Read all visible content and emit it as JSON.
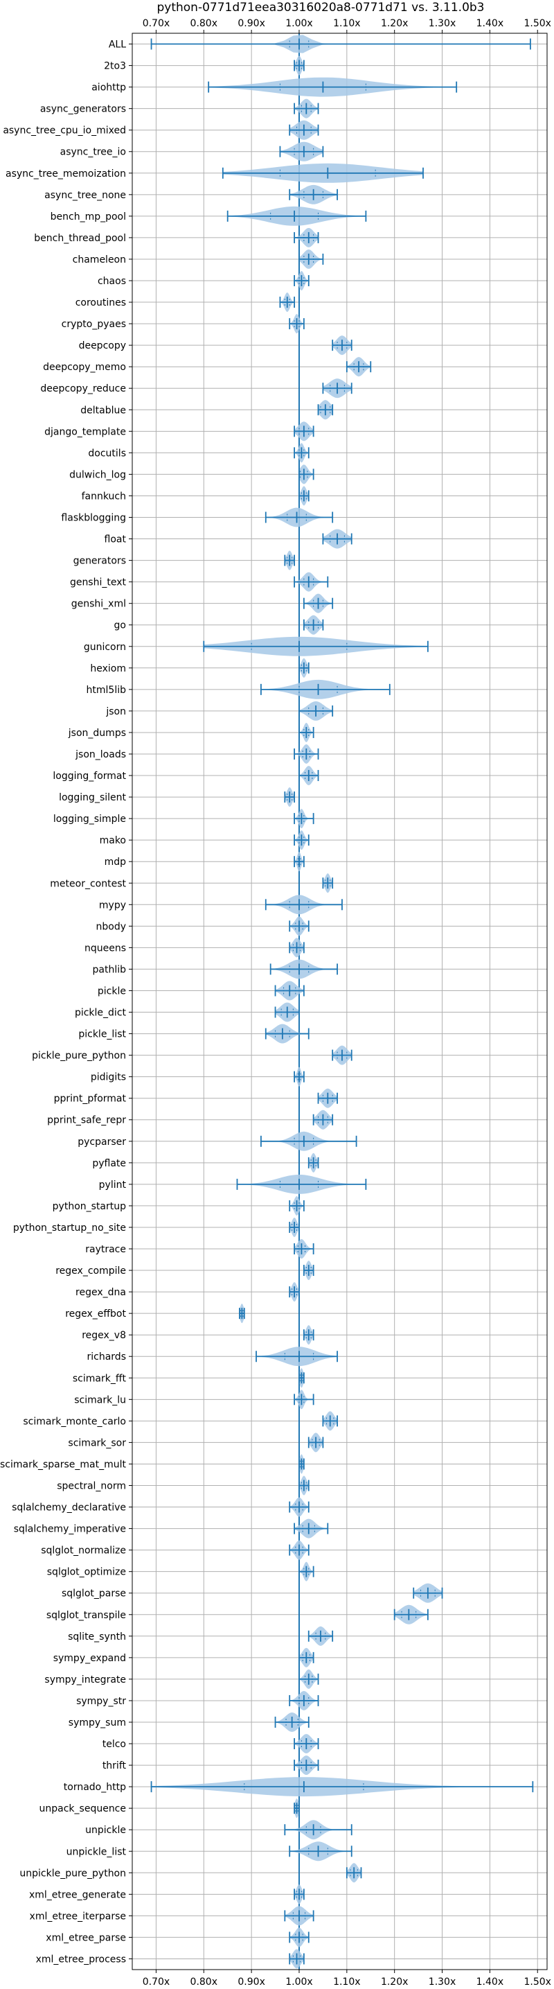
{
  "chart_data": {
    "type": "violin",
    "title": "python-0771d71eea30316020a8-0771d71 vs. 3.11.0b3",
    "xlim": [
      0.65,
      1.52
    ],
    "x_ticks": [
      "0.70x",
      "0.80x",
      "0.90x",
      "1.00x",
      "1.10x",
      "1.20x",
      "1.30x",
      "1.40x",
      "1.50x"
    ],
    "x_tick_values": [
      0.7,
      0.8,
      0.9,
      1.0,
      1.1,
      1.2,
      1.3,
      1.4,
      1.5
    ],
    "reference_line": 1.0,
    "grid": true,
    "color": "#1f77b4",
    "fill_color": "#a6c8e6",
    "benchmarks": [
      {
        "name": "ALL",
        "min": 0.69,
        "max": 1.485,
        "median": 1.0,
        "spread": 0.04
      },
      {
        "name": "2to3",
        "min": 0.99,
        "max": 1.01,
        "median": 1.0,
        "spread": 0.01
      },
      {
        "name": "aiohttp",
        "min": 0.81,
        "max": 1.33,
        "median": 1.05,
        "spread": 0.18
      },
      {
        "name": "async_generators",
        "min": 0.99,
        "max": 1.04,
        "median": 1.015,
        "spread": 0.02
      },
      {
        "name": "async_tree_cpu_io_mixed",
        "min": 0.98,
        "max": 1.04,
        "median": 1.01,
        "spread": 0.03
      },
      {
        "name": "async_tree_io",
        "min": 0.96,
        "max": 1.05,
        "median": 1.01,
        "spread": 0.04
      },
      {
        "name": "async_tree_memoization",
        "min": 0.84,
        "max": 1.26,
        "median": 1.06,
        "spread": 0.2
      },
      {
        "name": "async_tree_none",
        "min": 0.98,
        "max": 1.08,
        "median": 1.03,
        "spread": 0.04
      },
      {
        "name": "bench_mp_pool",
        "min": 0.85,
        "max": 1.14,
        "median": 0.99,
        "spread": 0.1
      },
      {
        "name": "bench_thread_pool",
        "min": 0.99,
        "max": 1.04,
        "median": 1.02,
        "spread": 0.02
      },
      {
        "name": "chameleon",
        "min": 1.0,
        "max": 1.05,
        "median": 1.02,
        "spread": 0.02
      },
      {
        "name": "chaos",
        "min": 0.99,
        "max": 1.02,
        "median": 1.005,
        "spread": 0.01
      },
      {
        "name": "coroutines",
        "min": 0.96,
        "max": 0.99,
        "median": 0.975,
        "spread": 0.01
      },
      {
        "name": "crypto_pyaes",
        "min": 0.98,
        "max": 1.01,
        "median": 0.995,
        "spread": 0.01
      },
      {
        "name": "deepcopy",
        "min": 1.07,
        "max": 1.11,
        "median": 1.09,
        "spread": 0.02
      },
      {
        "name": "deepcopy_memo",
        "min": 1.1,
        "max": 1.15,
        "median": 1.125,
        "spread": 0.02
      },
      {
        "name": "deepcopy_reduce",
        "min": 1.05,
        "max": 1.11,
        "median": 1.08,
        "spread": 0.03
      },
      {
        "name": "deltablue",
        "min": 1.04,
        "max": 1.07,
        "median": 1.055,
        "spread": 0.02
      },
      {
        "name": "django_template",
        "min": 0.99,
        "max": 1.03,
        "median": 1.01,
        "spread": 0.02
      },
      {
        "name": "docutils",
        "min": 0.99,
        "max": 1.02,
        "median": 1.005,
        "spread": 0.01
      },
      {
        "name": "dulwich_log",
        "min": 1.0,
        "max": 1.03,
        "median": 1.01,
        "spread": 0.015
      },
      {
        "name": "fannkuch",
        "min": 1.0,
        "max": 1.02,
        "median": 1.01,
        "spread": 0.01
      },
      {
        "name": "flaskblogging",
        "min": 0.93,
        "max": 1.07,
        "median": 0.995,
        "spread": 0.04
      },
      {
        "name": "float",
        "min": 1.05,
        "max": 1.11,
        "median": 1.08,
        "spread": 0.03
      },
      {
        "name": "generators",
        "min": 0.97,
        "max": 0.99,
        "median": 0.98,
        "spread": 0.01
      },
      {
        "name": "genshi_text",
        "min": 0.99,
        "max": 1.06,
        "median": 1.02,
        "spread": 0.02
      },
      {
        "name": "genshi_xml",
        "min": 1.01,
        "max": 1.07,
        "median": 1.04,
        "spread": 0.02
      },
      {
        "name": "go",
        "min": 1.01,
        "max": 1.05,
        "median": 1.03,
        "spread": 0.02
      },
      {
        "name": "gunicorn",
        "min": 0.8,
        "max": 1.27,
        "median": 1.0,
        "spread": 0.2
      },
      {
        "name": "hexiom",
        "min": 1.0,
        "max": 1.02,
        "median": 1.01,
        "spread": 0.01
      },
      {
        "name": "html5lib",
        "min": 0.92,
        "max": 1.19,
        "median": 1.04,
        "spread": 0.08
      },
      {
        "name": "json",
        "min": 1.0,
        "max": 1.07,
        "median": 1.035,
        "spread": 0.03
      },
      {
        "name": "json_dumps",
        "min": 1.0,
        "max": 1.03,
        "median": 1.015,
        "spread": 0.01
      },
      {
        "name": "json_loads",
        "min": 0.99,
        "max": 1.04,
        "median": 1.015,
        "spread": 0.015
      },
      {
        "name": "logging_format",
        "min": 1.0,
        "max": 1.04,
        "median": 1.02,
        "spread": 0.015
      },
      {
        "name": "logging_silent",
        "min": 0.97,
        "max": 0.99,
        "median": 0.98,
        "spread": 0.01
      },
      {
        "name": "logging_simple",
        "min": 0.99,
        "max": 1.03,
        "median": 1.005,
        "spread": 0.01
      },
      {
        "name": "mako",
        "min": 0.99,
        "max": 1.02,
        "median": 1.005,
        "spread": 0.01
      },
      {
        "name": "mdp",
        "min": 0.99,
        "max": 1.01,
        "median": 1.0,
        "spread": 0.005
      },
      {
        "name": "meteor_contest",
        "min": 1.05,
        "max": 1.07,
        "median": 1.06,
        "spread": 0.01
      },
      {
        "name": "mypy",
        "min": 0.93,
        "max": 1.09,
        "median": 1.0,
        "spread": 0.04
      },
      {
        "name": "nbody",
        "min": 0.98,
        "max": 1.02,
        "median": 1.0,
        "spread": 0.015
      },
      {
        "name": "nqueens",
        "min": 0.98,
        "max": 1.01,
        "median": 0.995,
        "spread": 0.015
      },
      {
        "name": "pathlib",
        "min": 0.94,
        "max": 1.08,
        "median": 1.0,
        "spread": 0.04
      },
      {
        "name": "pickle",
        "min": 0.95,
        "max": 1.01,
        "median": 0.98,
        "spread": 0.025
      },
      {
        "name": "pickle_dict",
        "min": 0.95,
        "max": 1.0,
        "median": 0.975,
        "spread": 0.025
      },
      {
        "name": "pickle_list",
        "min": 0.93,
        "max": 1.02,
        "median": 0.965,
        "spread": 0.03
      },
      {
        "name": "pickle_pure_python",
        "min": 1.07,
        "max": 1.11,
        "median": 1.09,
        "spread": 0.02
      },
      {
        "name": "pidigits",
        "min": 0.99,
        "max": 1.01,
        "median": 1.0,
        "spread": 0.005
      },
      {
        "name": "pprint_pformat",
        "min": 1.04,
        "max": 1.08,
        "median": 1.06,
        "spread": 0.02
      },
      {
        "name": "pprint_safe_repr",
        "min": 1.03,
        "max": 1.07,
        "median": 1.05,
        "spread": 0.02
      },
      {
        "name": "pycparser",
        "min": 0.92,
        "max": 1.12,
        "median": 1.01,
        "spread": 0.04
      },
      {
        "name": "pyflate",
        "min": 1.02,
        "max": 1.04,
        "median": 1.03,
        "spread": 0.01
      },
      {
        "name": "pylint",
        "min": 0.87,
        "max": 1.14,
        "median": 1.0,
        "spread": 0.08
      },
      {
        "name": "python_startup",
        "min": 0.98,
        "max": 1.01,
        "median": 0.995,
        "spread": 0.01
      },
      {
        "name": "python_startup_no_site",
        "min": 0.98,
        "max": 1.0,
        "median": 0.99,
        "spread": 0.01
      },
      {
        "name": "raytrace",
        "min": 0.99,
        "max": 1.03,
        "median": 1.005,
        "spread": 0.015
      },
      {
        "name": "regex_compile",
        "min": 1.01,
        "max": 1.03,
        "median": 1.02,
        "spread": 0.01
      },
      {
        "name": "regex_dna",
        "min": 0.98,
        "max": 1.0,
        "median": 0.99,
        "spread": 0.01
      },
      {
        "name": "regex_effbot",
        "min": 0.875,
        "max": 0.885,
        "median": 0.88,
        "spread": 0.005
      },
      {
        "name": "regex_v8",
        "min": 1.01,
        "max": 1.03,
        "median": 1.02,
        "spread": 0.01
      },
      {
        "name": "richards",
        "min": 0.91,
        "max": 1.08,
        "median": 1.0,
        "spread": 0.06
      },
      {
        "name": "scimark_fft",
        "min": 1.0,
        "max": 1.01,
        "median": 1.005,
        "spread": 0.005
      },
      {
        "name": "scimark_lu",
        "min": 0.99,
        "max": 1.03,
        "median": 1.005,
        "spread": 0.01
      },
      {
        "name": "scimark_monte_carlo",
        "min": 1.05,
        "max": 1.08,
        "median": 1.065,
        "spread": 0.015
      },
      {
        "name": "scimark_sor",
        "min": 1.02,
        "max": 1.05,
        "median": 1.035,
        "spread": 0.015
      },
      {
        "name": "scimark_sparse_mat_mult",
        "min": 1.0,
        "max": 1.01,
        "median": 1.005,
        "spread": 0.005
      },
      {
        "name": "spectral_norm",
        "min": 1.0,
        "max": 1.02,
        "median": 1.01,
        "spread": 0.01
      },
      {
        "name": "sqlalchemy_declarative",
        "min": 0.98,
        "max": 1.02,
        "median": 1.0,
        "spread": 0.015
      },
      {
        "name": "sqlalchemy_imperative",
        "min": 0.99,
        "max": 1.06,
        "median": 1.02,
        "spread": 0.025
      },
      {
        "name": "sqlglot_normalize",
        "min": 0.98,
        "max": 1.02,
        "median": 1.0,
        "spread": 0.015
      },
      {
        "name": "sqlglot_optimize",
        "min": 1.0,
        "max": 1.03,
        "median": 1.015,
        "spread": 0.01
      },
      {
        "name": "sqlglot_parse",
        "min": 1.24,
        "max": 1.3,
        "median": 1.27,
        "spread": 0.03
      },
      {
        "name": "sqlglot_transpile",
        "min": 1.2,
        "max": 1.27,
        "median": 1.23,
        "spread": 0.03
      },
      {
        "name": "sqlite_synth",
        "min": 1.02,
        "max": 1.07,
        "median": 1.045,
        "spread": 0.02
      },
      {
        "name": "sympy_expand",
        "min": 1.0,
        "max": 1.03,
        "median": 1.015,
        "spread": 0.015
      },
      {
        "name": "sympy_integrate",
        "min": 1.0,
        "max": 1.04,
        "median": 1.02,
        "spread": 0.015
      },
      {
        "name": "sympy_str",
        "min": 0.98,
        "max": 1.04,
        "median": 1.01,
        "spread": 0.02
      },
      {
        "name": "sympy_sum",
        "min": 0.95,
        "max": 1.02,
        "median": 0.985,
        "spread": 0.025
      },
      {
        "name": "telco",
        "min": 0.99,
        "max": 1.04,
        "median": 1.015,
        "spread": 0.02
      },
      {
        "name": "thrift",
        "min": 0.99,
        "max": 1.04,
        "median": 1.015,
        "spread": 0.02
      },
      {
        "name": "tornado_http",
        "min": 0.69,
        "max": 1.49,
        "median": 1.01,
        "spread": 0.25
      },
      {
        "name": "unpack_sequence",
        "min": 0.99,
        "max": 1.0,
        "median": 0.995,
        "spread": 0.005
      },
      {
        "name": "unpickle",
        "min": 0.97,
        "max": 1.11,
        "median": 1.03,
        "spread": 0.03
      },
      {
        "name": "unpickle_list",
        "min": 0.98,
        "max": 1.11,
        "median": 1.04,
        "spread": 0.04
      },
      {
        "name": "unpickle_pure_python",
        "min": 1.1,
        "max": 1.13,
        "median": 1.115,
        "spread": 0.015
      },
      {
        "name": "xml_etree_generate",
        "min": 0.99,
        "max": 1.01,
        "median": 1.0,
        "spread": 0.01
      },
      {
        "name": "xml_etree_iterparse",
        "min": 0.97,
        "max": 1.03,
        "median": 1.0,
        "spread": 0.025
      },
      {
        "name": "xml_etree_parse",
        "min": 0.98,
        "max": 1.02,
        "median": 1.0,
        "spread": 0.015
      },
      {
        "name": "xml_etree_process",
        "min": 0.98,
        "max": 1.01,
        "median": 0.995,
        "spread": 0.015
      }
    ]
  }
}
